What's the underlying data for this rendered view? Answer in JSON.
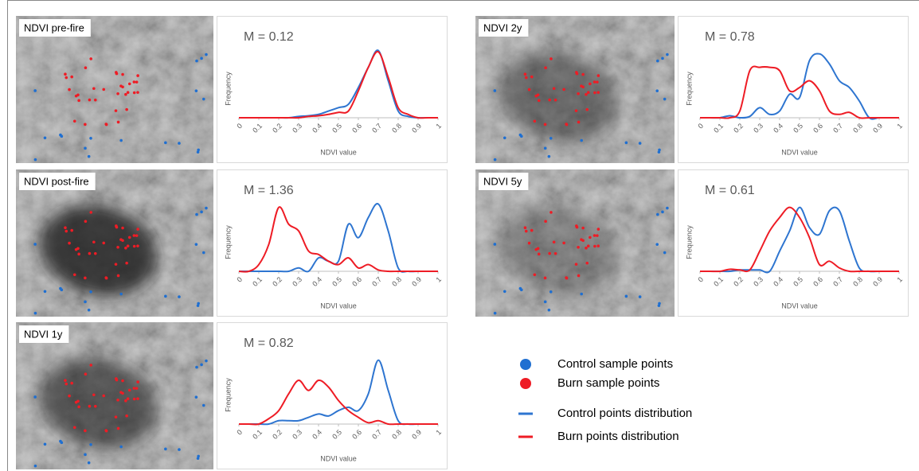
{
  "chart_data": [
    {
      "type": "line",
      "image_label": "NDVI pre-fire",
      "title": "M = 0.12",
      "x_label": "NDVI value",
      "y_label": "Frequency",
      "x": [
        0,
        0.05,
        0.1,
        0.15,
        0.2,
        0.25,
        0.3,
        0.35,
        0.4,
        0.45,
        0.5,
        0.55,
        0.6,
        0.65,
        0.7,
        0.75,
        0.8,
        0.85,
        0.9,
        0.95,
        1
      ],
      "xlim": [
        0,
        1
      ],
      "xticks": [
        0,
        0.1,
        0.2,
        0.3,
        0.4,
        0.5,
        0.6,
        0.7,
        0.8,
        0.9,
        1
      ],
      "ylim": [
        0,
        1.1
      ],
      "series": [
        {
          "color": "#2e75d0",
          "values": [
            0,
            0,
            0,
            0,
            0,
            0,
            0.02,
            0.03,
            0.05,
            0.1,
            0.15,
            0.2,
            0.45,
            0.75,
            1.0,
            0.55,
            0.1,
            0.02,
            0,
            0,
            0
          ]
        },
        {
          "color": "#ee1c25",
          "values": [
            0,
            0,
            0,
            0,
            0,
            0,
            0,
            0.02,
            0.03,
            0.05,
            0.08,
            0.1,
            0.4,
            0.75,
            0.98,
            0.6,
            0.15,
            0.05,
            0,
            0,
            0
          ]
        }
      ]
    },
    {
      "type": "line",
      "image_label": "NDVI 2y",
      "title": "M = 0.78",
      "x_label": "NDVI value",
      "y_label": "Frequency",
      "x": [
        0,
        0.05,
        0.1,
        0.15,
        0.2,
        0.25,
        0.3,
        0.35,
        0.4,
        0.45,
        0.5,
        0.55,
        0.6,
        0.65,
        0.7,
        0.75,
        0.8,
        0.85,
        0.9,
        0.95,
        1
      ],
      "xlim": [
        0,
        1
      ],
      "xticks": [
        0,
        0.1,
        0.2,
        0.3,
        0.4,
        0.5,
        0.6,
        0.7,
        0.8,
        0.9,
        1
      ],
      "ylim": [
        0,
        1.1
      ],
      "series": [
        {
          "color": "#2e75d0",
          "values": [
            0,
            0,
            0,
            0.03,
            0,
            0.02,
            0.15,
            0.05,
            0.1,
            0.35,
            0.3,
            0.85,
            0.95,
            0.8,
            0.55,
            0.45,
            0.25,
            0,
            0,
            0,
            0
          ]
        },
        {
          "color": "#ee1c25",
          "values": [
            0,
            0,
            0,
            0,
            0.1,
            0.7,
            0.75,
            0.75,
            0.7,
            0.4,
            0.45,
            0.55,
            0.4,
            0.1,
            0.05,
            0.08,
            0,
            0,
            0,
            0,
            0
          ]
        }
      ]
    },
    {
      "type": "line",
      "image_label": "NDVI post-fire",
      "title": "M = 1.36",
      "x_label": "NDVI value",
      "y_label": "Frequency",
      "x": [
        0,
        0.05,
        0.1,
        0.15,
        0.2,
        0.25,
        0.3,
        0.35,
        0.4,
        0.45,
        0.5,
        0.55,
        0.6,
        0.65,
        0.7,
        0.75,
        0.8,
        0.85,
        0.9,
        0.95,
        1
      ],
      "xlim": [
        0,
        1
      ],
      "xticks": [
        0,
        0.1,
        0.2,
        0.3,
        0.4,
        0.5,
        0.6,
        0.7,
        0.8,
        0.9,
        1
      ],
      "ylim": [
        0,
        1.1
      ],
      "series": [
        {
          "color": "#2e75d0",
          "values": [
            0,
            0,
            0,
            0,
            0,
            0,
            0.05,
            0,
            0.2,
            0.15,
            0.15,
            0.7,
            0.5,
            0.8,
            1.0,
            0.6,
            0.05,
            0,
            0,
            0,
            0
          ]
        },
        {
          "color": "#ee1c25",
          "values": [
            0,
            0,
            0.1,
            0.4,
            0.95,
            0.7,
            0.6,
            0.3,
            0.25,
            0.15,
            0.1,
            0.2,
            0.05,
            0.1,
            0.02,
            0,
            0,
            0,
            0,
            0,
            0
          ]
        }
      ]
    },
    {
      "type": "line",
      "image_label": "NDVI 5y",
      "title": "M = 0.61",
      "x_label": "NDVI value",
      "y_label": "Frequency",
      "x": [
        0,
        0.05,
        0.1,
        0.15,
        0.2,
        0.25,
        0.3,
        0.35,
        0.4,
        0.45,
        0.5,
        0.55,
        0.6,
        0.65,
        0.7,
        0.75,
        0.8,
        0.85,
        0.9,
        0.95,
        1
      ],
      "xlim": [
        0,
        1
      ],
      "xticks": [
        0,
        0.1,
        0.2,
        0.3,
        0.4,
        0.5,
        0.6,
        0.7,
        0.8,
        0.9,
        1
      ],
      "ylim": [
        0,
        1.1
      ],
      "series": [
        {
          "color": "#2e75d0",
          "values": [
            0,
            0,
            0,
            0,
            0.02,
            0.02,
            0.02,
            0,
            0.3,
            0.6,
            0.95,
            0.65,
            0.55,
            0.9,
            0.9,
            0.45,
            0.05,
            0,
            0,
            0,
            0
          ]
        },
        {
          "color": "#ee1c25",
          "values": [
            0,
            0,
            0,
            0.03,
            0.02,
            0.02,
            0.3,
            0.6,
            0.8,
            0.95,
            0.8,
            0.5,
            0.1,
            0.15,
            0.05,
            0,
            0,
            0,
            0,
            0,
            0
          ]
        }
      ]
    },
    {
      "type": "line",
      "image_label": "NDVI 1y",
      "title": "M = 0.82",
      "x_label": "NDVI value",
      "y_label": "Frequency",
      "x": [
        0,
        0.05,
        0.1,
        0.15,
        0.2,
        0.25,
        0.3,
        0.35,
        0.4,
        0.45,
        0.5,
        0.55,
        0.6,
        0.65,
        0.7,
        0.75,
        0.8,
        0.85,
        0.9,
        0.95,
        1
      ],
      "xlim": [
        0,
        1
      ],
      "xticks": [
        0,
        0.1,
        0.2,
        0.3,
        0.4,
        0.5,
        0.6,
        0.7,
        0.8,
        0.9,
        1
      ],
      "ylim": [
        0,
        1.1
      ],
      "series": [
        {
          "color": "#2e75d0",
          "values": [
            0,
            0,
            0,
            0,
            0.05,
            0.05,
            0.05,
            0.1,
            0.15,
            0.12,
            0.2,
            0.25,
            0.2,
            0.45,
            0.95,
            0.5,
            0.05,
            0,
            0,
            0,
            0
          ]
        },
        {
          "color": "#ee1c25",
          "values": [
            0,
            0,
            0,
            0.08,
            0.2,
            0.45,
            0.65,
            0.5,
            0.65,
            0.55,
            0.35,
            0.2,
            0.1,
            0.02,
            0.05,
            0,
            0,
            0,
            0,
            0,
            0
          ]
        }
      ]
    }
  ],
  "legend": [
    {
      "label": "Control sample points",
      "color": "#1f6fd1",
      "marker": "dot"
    },
    {
      "label": "Burn sample points",
      "color": "#ee1c25",
      "marker": "dot"
    },
    {
      "label": "Control points distribution",
      "color": "#2e75d0",
      "marker": "line"
    },
    {
      "label": "Burn points distribution",
      "color": "#ee1c25",
      "marker": "line"
    }
  ]
}
